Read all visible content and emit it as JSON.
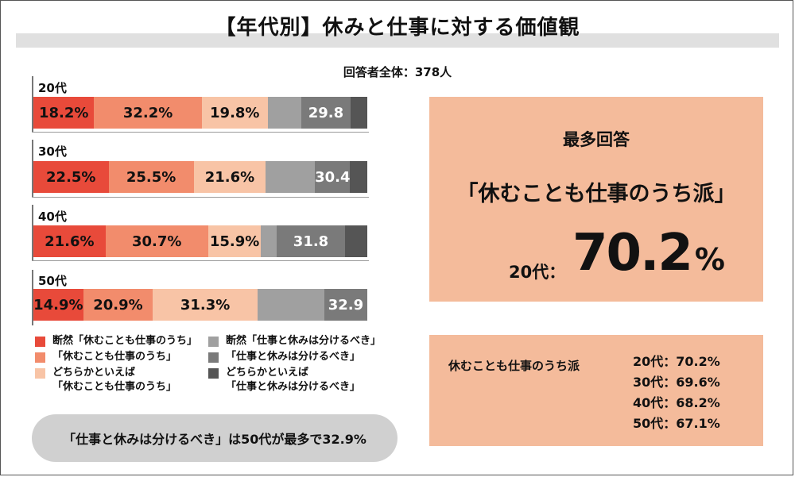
{
  "title": "【年代別】休みと仕事に対する価値観",
  "respondents": "回答者全体：378人",
  "colors": [
    "#e84a3a",
    "#f28c6c",
    "#f8c4a6",
    "#a0a0a0",
    "#7a7a7a",
    "#555555"
  ],
  "chart_data": {
    "type": "bar",
    "orientation": "horizontal",
    "stacked": true,
    "categories": [
      "20代",
      "30代",
      "40代",
      "50代"
    ],
    "series": [
      {
        "name": "断然「休むことも仕事のうち」",
        "values": [
          18.2,
          22.5,
          21.6,
          14.9
        ],
        "labels": [
          "18.2%",
          "22.5%",
          "21.6%",
          "14.9%"
        ]
      },
      {
        "name": "「休むことも仕事のうち」",
        "values": [
          32.2,
          25.5,
          30.7,
          20.9
        ],
        "labels": [
          "32.2%",
          "25.5%",
          "30.7%",
          "20.9%"
        ]
      },
      {
        "name": "どちらかといえば「休むことも仕事のうち」",
        "values": [
          19.8,
          21.6,
          15.9,
          31.3
        ],
        "labels": [
          "19.8%",
          "21.6%",
          "15.9%",
          "31.3%"
        ]
      },
      {
        "name": "断然「仕事と休みは分けるべき」",
        "values": [
          10.0,
          14.8,
          4.6,
          20.0
        ],
        "labels": [
          "",
          "",
          "",
          ""
        ]
      },
      {
        "name": "「仕事と休みは分けるべき」",
        "values": [
          14.8,
          10.4,
          20.6,
          12.9
        ],
        "labels": [
          "29.8",
          "30.4",
          "31.8",
          "32.9"
        ]
      },
      {
        "name": "どちらかといえば「仕事と休みは分けるべき」",
        "values": [
          5.0,
          5.2,
          6.6,
          0.0
        ],
        "labels": [
          "",
          "",
          "",
          ""
        ]
      }
    ],
    "xlim": [
      0,
      100
    ]
  },
  "legend": [
    {
      "line1": "断然「休むことも仕事のうち」",
      "line2": ""
    },
    {
      "line1": "「休むことも仕事のうち」",
      "line2": ""
    },
    {
      "line1": "どちらかといえば",
      "line2": "「休むことも仕事のうち」"
    },
    {
      "line1": "断然「仕事と休みは分けるべき」",
      "line2": ""
    },
    {
      "line1": "「仕事と休みは分けるべき」",
      "line2": ""
    },
    {
      "line1": "どちらかといえば",
      "line2": "「仕事と休みは分けるべき」"
    }
  ],
  "bubble_text": "「仕事と休みは分けるべき」は50代が最多で32.9%",
  "top_panel": {
    "heading": "最多回答",
    "answer": "「休むことも仕事のうち派」",
    "age": "20代：",
    "value": "70.2",
    "unit": "%"
  },
  "bottom_panel": {
    "label": "休むことも仕事のうち派",
    "rows": [
      "20代：70.2%",
      "30代：69.6%",
      "40代：68.2%",
      "50代：67.1%"
    ]
  }
}
